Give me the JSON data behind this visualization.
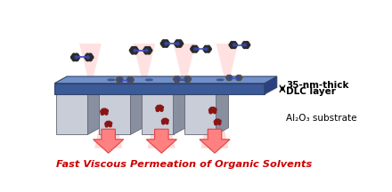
{
  "fig_width": 4.4,
  "fig_height": 2.16,
  "dpi": 100,
  "bg_color": "#ffffff",
  "dlc_label_line1": "35-nm-thick",
  "dlc_label_line2": "DLC layer",
  "al2o3_label": "Al₂O₃ substrate",
  "bottom_label": "Fast Viscous Permeation of Organic Solvents",
  "bottom_label_color": "#cc0000",
  "dlc_top_color": "#7090cc",
  "dlc_face_color": "#3a5a99",
  "dlc_side_color": "#2a4080",
  "pillar_face_color": "#c8cdd8",
  "pillar_side_color": "#8890a0",
  "pillar_top_color": "#dde0e8",
  "arrow_color": "#ff8080",
  "arrow_edge_color": "#dd4444"
}
